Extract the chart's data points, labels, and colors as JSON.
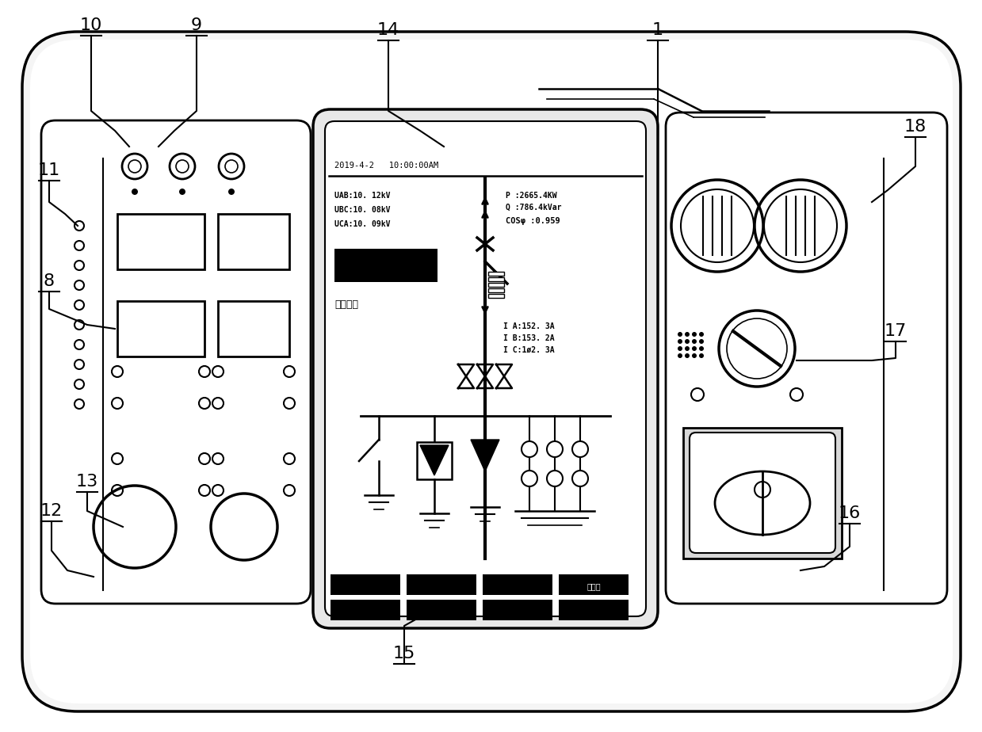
{
  "bg_color": "#ffffff",
  "line_color": "#000000",
  "labels": [
    "1",
    "8",
    "9",
    "10",
    "11",
    "12",
    "13",
    "14",
    "15",
    "16",
    "17",
    "18"
  ],
  "display_text": {
    "datetime": "2019-4-2   10:00:00AM",
    "uab": "UAB:10. 12kV",
    "ubc": "UBC:10. 08kV",
    "uca": "UCA:10. 09kV",
    "p": "P :2665.4KW",
    "q": "Q :786.4kVar",
    "cos": "COSφ :0.959",
    "ia": "I A:152. 3A",
    "ib": "I B:153. 2A",
    "ic": "I C:1ø2. 3A",
    "button_text": "模拟屏",
    "zone_text": "智域负荷"
  }
}
